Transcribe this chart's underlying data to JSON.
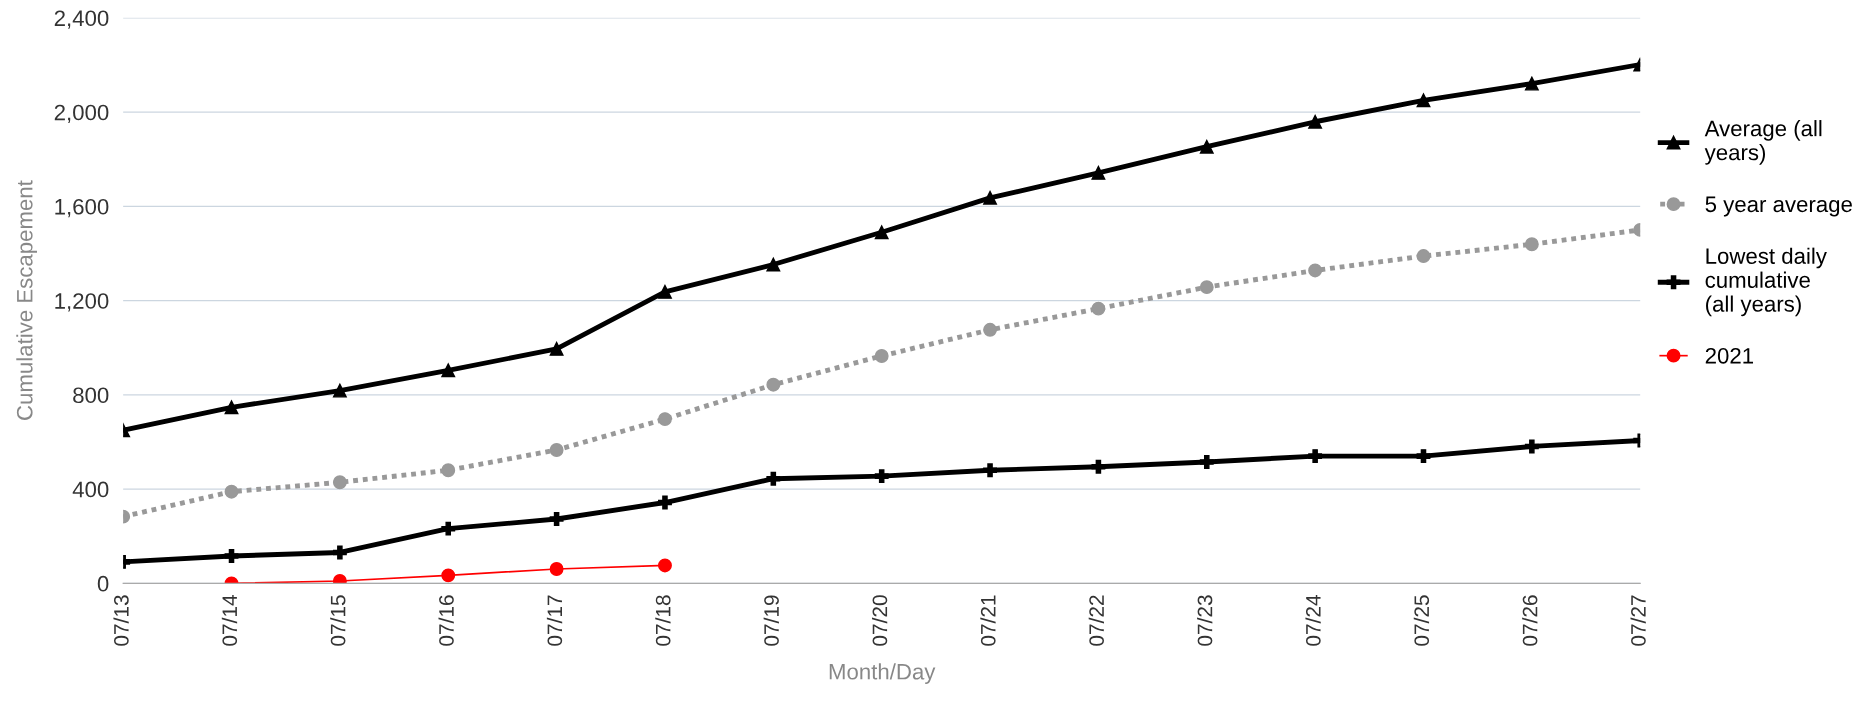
{
  "chart_data": {
    "type": "line",
    "xlabel": "Month/Day",
    "ylabel": "Cumulative Escapement",
    "categories": [
      "07/13",
      "07/14",
      "07/15",
      "07/16",
      "07/17",
      "07/18",
      "07/19",
      "07/20",
      "07/21",
      "07/22",
      "07/23",
      "07/24",
      "07/25",
      "07/26",
      "07/27"
    ],
    "series": [
      {
        "name": "Average (all years)",
        "color": "#000000",
        "marker": "triangle",
        "line_style": "solid",
        "values": [
          650,
          747,
          818,
          904,
          995,
          1237,
          1353,
          1490,
          1636,
          1742,
          1853,
          1959,
          2050,
          2121,
          2202
        ]
      },
      {
        "name": "5 year average",
        "color": "#999999",
        "marker": "circle",
        "line_style": "dotted",
        "values": [
          283,
          389,
          429,
          480,
          566,
          697,
          843,
          965,
          1076,
          1166,
          1257,
          1328,
          1389,
          1439,
          1500
        ]
      },
      {
        "name": "Lowest daily cumulative (all years)",
        "color": "#000000",
        "marker": "cross",
        "line_style": "solid",
        "values": [
          91,
          116,
          131,
          232,
          273,
          343,
          444,
          455,
          480,
          495,
          515,
          540,
          540,
          581,
          606
        ]
      },
      {
        "name": "2021",
        "color": "#ff0000",
        "marker": "circle",
        "line_style": "solid",
        "values": [
          null,
          0,
          10,
          34,
          61,
          76,
          null,
          null,
          null,
          null,
          null,
          null,
          null,
          null,
          null
        ]
      }
    ],
    "ylim": [
      0,
      2400
    ],
    "yticks": [
      {
        "value": 0,
        "label": "0"
      },
      {
        "value": 400,
        "label": "400"
      },
      {
        "value": 800,
        "label": "800"
      },
      {
        "value": 1200,
        "label": "1,200"
      },
      {
        "value": 1600,
        "label": "1,600"
      },
      {
        "value": 2000,
        "label": "2,000"
      },
      {
        "value": 2400,
        "label": "2,400"
      }
    ],
    "grid": "y",
    "legend": "right"
  }
}
